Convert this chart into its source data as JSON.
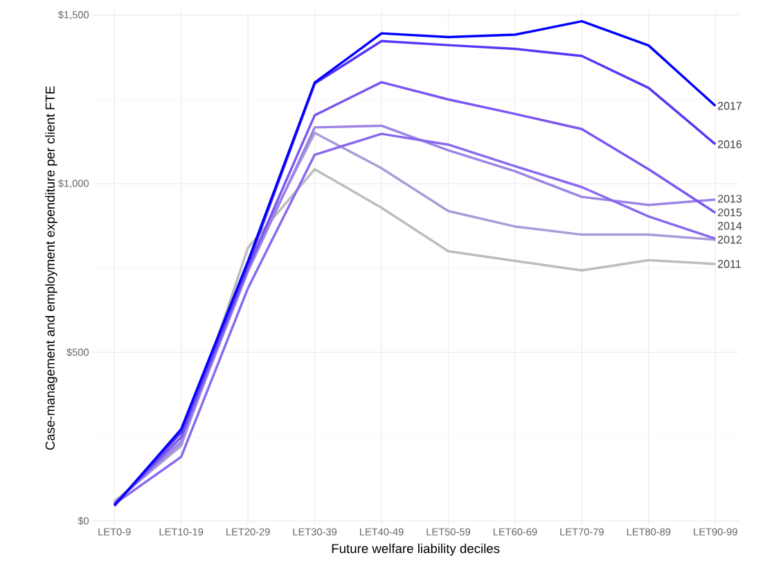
{
  "chart_data": {
    "type": "line",
    "xlabel": "Future welfare liability deciles",
    "ylabel": "Case-management and employment expenditure per client FTE",
    "categories": [
      "LET0-9",
      "LET10-19",
      "LET20-29",
      "LET30-39",
      "LET40-49",
      "LET50-59",
      "LET60-69",
      "LET70-79",
      "LET80-89",
      "LET90-99"
    ],
    "ylim": [
      0,
      1500
    ],
    "yticks": [
      {
        "value": 0,
        "label": "$0"
      },
      {
        "value": 500,
        "label": "$500"
      },
      {
        "value": 1000,
        "label": "$1,000"
      },
      {
        "value": 1500,
        "label": "$1,500"
      }
    ],
    "grid": true,
    "legend": false,
    "series": [
      {
        "name": "2011",
        "color": "#bdbdbd",
        "values": [
          58,
          222,
          810,
          1043,
          929,
          800,
          771,
          743,
          773,
          762
        ]
      },
      {
        "name": "2012",
        "color": "#a89cd8",
        "values": [
          55,
          225,
          760,
          1151,
          1046,
          919,
          873,
          849,
          849,
          834
        ]
      },
      {
        "name": "2013",
        "color": "#9b84e4",
        "values": [
          52,
          235,
          740,
          1167,
          1172,
          1099,
          1037,
          961,
          937,
          953
        ]
      },
      {
        "name": "2014",
        "color": "#8a68ee",
        "values": [
          50,
          190,
          690,
          1086,
          1148,
          1116,
          1052,
          990,
          903,
          837
        ]
      },
      {
        "name": "2015",
        "color": "#7b56f0",
        "values": [
          50,
          248,
          750,
          1203,
          1301,
          1250,
          1207,
          1162,
          1043,
          914
        ]
      },
      {
        "name": "2016",
        "color": "#5a34f6",
        "values": [
          48,
          262,
          760,
          1297,
          1423,
          1411,
          1400,
          1379,
          1284,
          1117
        ]
      },
      {
        "name": "2017",
        "color": "#0000ff",
        "values": [
          45,
          272,
          770,
          1300,
          1446,
          1435,
          1442,
          1482,
          1410,
          1231
        ]
      }
    ]
  }
}
